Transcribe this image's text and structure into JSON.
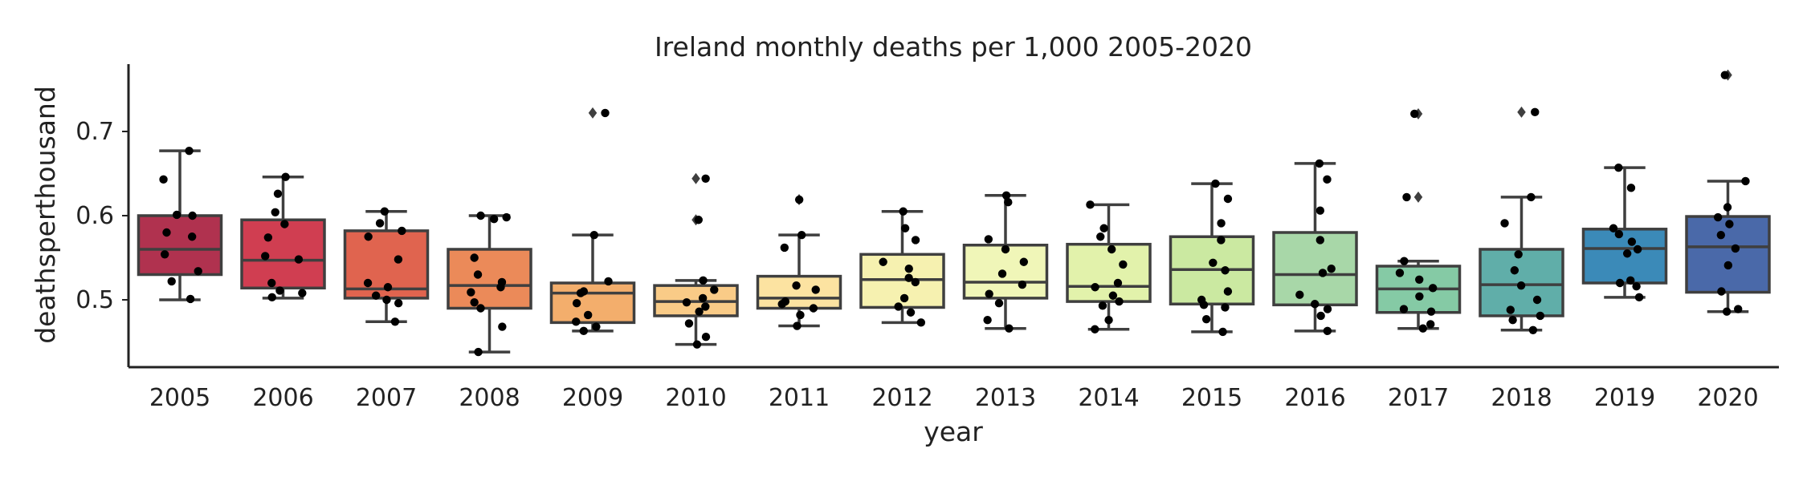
{
  "chart_data": {
    "type": "box",
    "title": "Ireland monthly deaths per 1,000 2005-2020",
    "xlabel": "year",
    "ylabel": "deathsperthousand",
    "ylim": [
      0.42,
      0.78
    ],
    "yticks": [
      0.5,
      0.6,
      0.7
    ],
    "grid": false,
    "legend": "none",
    "categories": [
      "2005",
      "2006",
      "2007",
      "2008",
      "2009",
      "2010",
      "2011",
      "2012",
      "2013",
      "2014",
      "2015",
      "2016",
      "2017",
      "2018",
      "2019",
      "2020"
    ],
    "boxes": [
      {
        "year": "2005",
        "color": "#b0324f",
        "q1": 0.53,
        "median": 0.56,
        "q3": 0.6,
        "whisker_low": 0.5,
        "whisker_high": 0.677,
        "fliers": []
      },
      {
        "year": "2006",
        "color": "#d03e51",
        "q1": 0.514,
        "median": 0.547,
        "q3": 0.595,
        "whisker_low": 0.502,
        "whisker_high": 0.646,
        "fliers": []
      },
      {
        "year": "2007",
        "color": "#e0644f",
        "q1": 0.502,
        "median": 0.513,
        "q3": 0.582,
        "whisker_low": 0.474,
        "whisker_high": 0.605,
        "fliers": []
      },
      {
        "year": "2008",
        "color": "#eb8a59",
        "q1": 0.49,
        "median": 0.517,
        "q3": 0.56,
        "whisker_low": 0.438,
        "whisker_high": 0.6,
        "fliers": []
      },
      {
        "year": "2009",
        "color": "#f3ae6c",
        "q1": 0.473,
        "median": 0.508,
        "q3": 0.52,
        "whisker_low": 0.463,
        "whisker_high": 0.577,
        "fliers": [
          0.722
        ]
      },
      {
        "year": "2010",
        "color": "#f9cb87",
        "q1": 0.481,
        "median": 0.498,
        "q3": 0.517,
        "whisker_low": 0.447,
        "whisker_high": 0.523,
        "fliers": [
          0.595,
          0.644
        ]
      },
      {
        "year": "2011",
        "color": "#fce3a1",
        "q1": 0.49,
        "median": 0.502,
        "q3": 0.528,
        "whisker_low": 0.469,
        "whisker_high": 0.577,
        "fliers": [
          0.619
        ]
      },
      {
        "year": "2012",
        "color": "#f6f1b0",
        "q1": 0.491,
        "median": 0.524,
        "q3": 0.554,
        "whisker_low": 0.473,
        "whisker_high": 0.605,
        "fliers": []
      },
      {
        "year": "2013",
        "color": "#f0f6b8",
        "q1": 0.502,
        "median": 0.521,
        "q3": 0.565,
        "whisker_low": 0.466,
        "whisker_high": 0.624,
        "fliers": []
      },
      {
        "year": "2014",
        "color": "#e2f2ab",
        "q1": 0.498,
        "median": 0.516,
        "q3": 0.566,
        "whisker_low": 0.465,
        "whisker_high": 0.613,
        "fliers": []
      },
      {
        "year": "2015",
        "color": "#cbe9a1",
        "q1": 0.495,
        "median": 0.536,
        "q3": 0.575,
        "whisker_low": 0.462,
        "whisker_high": 0.638,
        "fliers": []
      },
      {
        "year": "2016",
        "color": "#a8d7a8",
        "q1": 0.494,
        "median": 0.53,
        "q3": 0.58,
        "whisker_low": 0.463,
        "whisker_high": 0.662,
        "fliers": []
      },
      {
        "year": "2017",
        "color": "#85caa5",
        "q1": 0.485,
        "median": 0.513,
        "q3": 0.54,
        "whisker_low": 0.466,
        "whisker_high": 0.546,
        "fliers": [
          0.622,
          0.721
        ]
      },
      {
        "year": "2018",
        "color": "#60aea9",
        "q1": 0.481,
        "median": 0.518,
        "q3": 0.56,
        "whisker_low": 0.464,
        "whisker_high": 0.622,
        "fliers": [
          0.723
        ]
      },
      {
        "year": "2019",
        "color": "#3b8ab8",
        "q1": 0.52,
        "median": 0.561,
        "q3": 0.584,
        "whisker_low": 0.503,
        "whisker_high": 0.657,
        "fliers": []
      },
      {
        "year": "2020",
        "color": "#4a69a9",
        "q1": 0.509,
        "median": 0.563,
        "q3": 0.599,
        "whisker_low": 0.486,
        "whisker_high": 0.641,
        "fliers": [
          0.767
        ]
      }
    ],
    "points": {
      "2005": [
        0.677,
        0.643,
        0.601,
        0.6,
        0.58,
        0.575,
        0.554,
        0.534,
        0.522,
        0.501
      ],
      "2006": [
        0.646,
        0.626,
        0.604,
        0.59,
        0.574,
        0.552,
        0.548,
        0.52,
        0.511,
        0.508,
        0.503
      ],
      "2007": [
        0.605,
        0.591,
        0.582,
        0.575,
        0.548,
        0.52,
        0.515,
        0.505,
        0.5,
        0.496,
        0.474
      ],
      "2008": [
        0.6,
        0.598,
        0.596,
        0.55,
        0.53,
        0.521,
        0.515,
        0.509,
        0.497,
        0.49,
        0.468,
        0.438
      ],
      "2009": [
        0.722,
        0.577,
        0.522,
        0.51,
        0.508,
        0.496,
        0.482,
        0.474,
        0.468,
        0.463
      ],
      "2010": [
        0.644,
        0.595,
        0.523,
        0.512,
        0.502,
        0.497,
        0.492,
        0.486,
        0.472,
        0.456,
        0.447
      ],
      "2011": [
        0.619,
        0.577,
        0.562,
        0.517,
        0.512,
        0.498,
        0.495,
        0.49,
        0.482,
        0.469
      ],
      "2012": [
        0.605,
        0.585,
        0.571,
        0.545,
        0.537,
        0.526,
        0.521,
        0.502,
        0.492,
        0.485,
        0.473
      ],
      "2013": [
        0.624,
        0.616,
        0.572,
        0.56,
        0.545,
        0.531,
        0.518,
        0.507,
        0.496,
        0.476,
        0.466
      ],
      "2014": [
        0.613,
        0.585,
        0.575,
        0.56,
        0.542,
        0.52,
        0.515,
        0.505,
        0.498,
        0.493,
        0.476,
        0.465
      ],
      "2015": [
        0.638,
        0.62,
        0.591,
        0.571,
        0.544,
        0.535,
        0.51,
        0.5,
        0.494,
        0.491,
        0.477,
        0.462
      ],
      "2016": [
        0.662,
        0.643,
        0.606,
        0.571,
        0.537,
        0.532,
        0.506,
        0.495,
        0.489,
        0.481,
        0.463
      ],
      "2017": [
        0.721,
        0.622,
        0.546,
        0.532,
        0.524,
        0.514,
        0.504,
        0.489,
        0.486,
        0.471,
        0.466
      ],
      "2018": [
        0.723,
        0.622,
        0.591,
        0.554,
        0.535,
        0.517,
        0.5,
        0.488,
        0.481,
        0.476,
        0.464
      ],
      "2019": [
        0.657,
        0.633,
        0.585,
        0.578,
        0.569,
        0.56,
        0.555,
        0.523,
        0.52,
        0.516,
        0.503
      ],
      "2020": [
        0.767,
        0.641,
        0.61,
        0.598,
        0.59,
        0.577,
        0.561,
        0.541,
        0.51,
        0.489,
        0.486
      ]
    }
  }
}
